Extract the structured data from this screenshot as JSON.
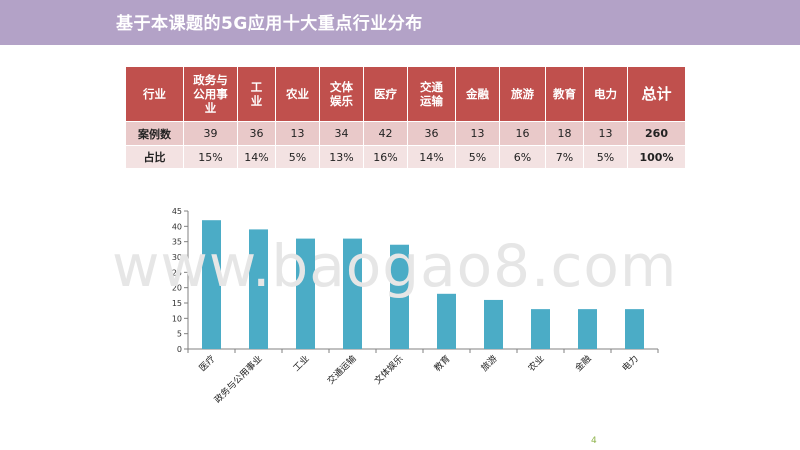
{
  "header": {
    "title": "基于本课题的5G应用十大重点行业分布"
  },
  "table": {
    "corner_label": "行业",
    "columns": [
      "政务与\n公用事\n业",
      "工\n业",
      "农业",
      "文体\n娱乐",
      "医疗",
      "交通\n运输",
      "金融",
      "旅游",
      "教育",
      "电力",
      "总计"
    ],
    "rows": [
      {
        "label": "案例数",
        "values": [
          "39",
          "36",
          "13",
          "34",
          "42",
          "36",
          "13",
          "16",
          "18",
          "13",
          "260"
        ]
      },
      {
        "label": "占比",
        "values": [
          "15%",
          "14%",
          "5%",
          "13%",
          "16%",
          "14%",
          "5%",
          "6%",
          "7%",
          "5%",
          "100%"
        ]
      }
    ]
  },
  "chart_data": {
    "type": "bar",
    "categories": [
      "医疗",
      "政务与公用事业",
      "工业",
      "交通运输",
      "文体娱乐",
      "教育",
      "旅游",
      "农业",
      "金融",
      "电力"
    ],
    "values": [
      42,
      39,
      36,
      36,
      34,
      18,
      16,
      13,
      13,
      13
    ],
    "title": "",
    "xlabel": "",
    "ylabel": "",
    "ylim": [
      0,
      45
    ],
    "yticks": [
      0,
      5,
      10,
      15,
      20,
      25,
      30,
      35,
      40,
      45
    ],
    "grid": false,
    "legend": "none",
    "bar_color": "#4bacc6"
  },
  "watermark": "www.baogao8.com",
  "page_number": "4",
  "colors": {
    "title_bar": "#b3a2c7",
    "table_header": "#c0504d",
    "row1": "#e9c9c9",
    "row2": "#f3e2e2",
    "bars": "#4bacc6",
    "page_number": "#8db34a"
  }
}
